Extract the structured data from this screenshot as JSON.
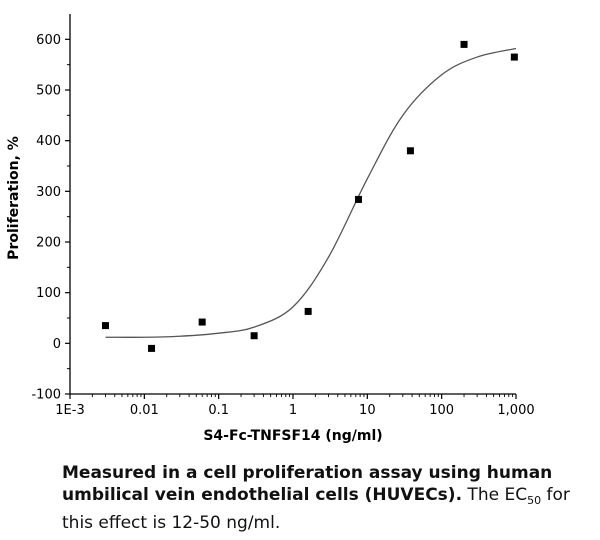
{
  "chart_data": {
    "type": "scatter",
    "title": "",
    "xlabel": "S4-Fc-TNFSF14 (ng/ml)",
    "ylabel": "Proliferation, %",
    "xscale": "log",
    "xlim": [
      0.001,
      1000
    ],
    "ylim": [
      -100,
      650
    ],
    "x_ticks": [
      0.001,
      0.01,
      0.1,
      1,
      10,
      100,
      1000
    ],
    "x_tick_labels": [
      "1E-3",
      "0.01",
      "0.1",
      "1",
      "10",
      "100",
      "1,000"
    ],
    "y_ticks": [
      -100,
      0,
      100,
      200,
      300,
      400,
      500,
      600
    ],
    "y_tick_labels": [
      "-100",
      "0",
      "100",
      "200",
      "300",
      "400",
      "500",
      "600"
    ],
    "grid": false,
    "series": [
      {
        "type": "scatter",
        "marker": "square",
        "color": "#000000",
        "x": [
          0.003,
          0.0125,
          0.06,
          0.3,
          1.6,
          7.6,
          38,
          200,
          950
        ],
        "y": [
          35,
          -10,
          42,
          15,
          63,
          284,
          380,
          590,
          565
        ]
      },
      {
        "type": "line",
        "fit": "4-parameter logistic",
        "color": "#555555",
        "x": [
          0.003,
          0.01,
          0.03,
          0.1,
          0.3,
          1,
          3,
          10,
          30,
          100,
          300,
          1000
        ],
        "y": [
          12,
          12,
          14,
          20,
          32,
          72,
          170,
          325,
          450,
          530,
          565,
          582
        ]
      }
    ]
  },
  "caption": {
    "bold": "Measured in a cell proliferation assay using human umbilical vein endothelial cells (HUVECs).",
    "text_before_sub": " The EC",
    "subscript": "50",
    "text_after_sub": " for this effect is 12-50 ng/ml."
  }
}
